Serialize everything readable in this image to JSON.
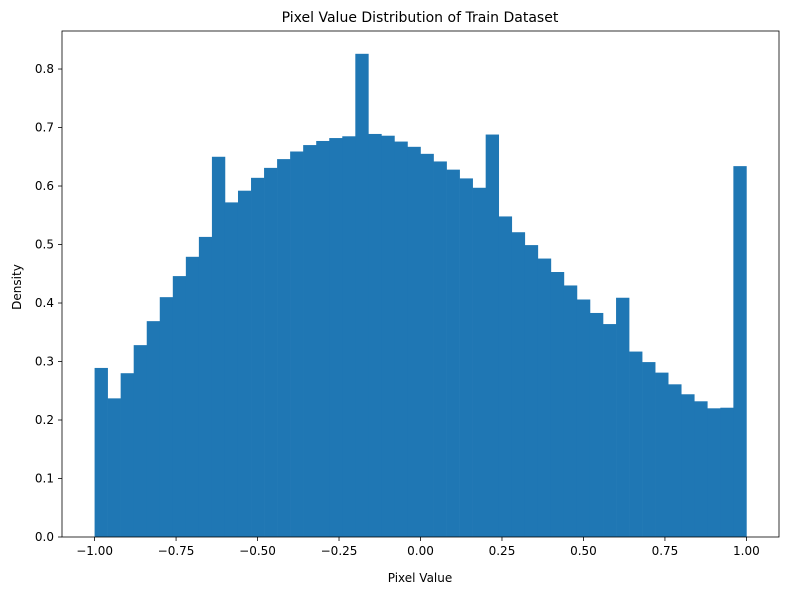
{
  "chart_data": {
    "type": "bar",
    "title": "Pixel Value Distribution of Train Dataset",
    "xlabel": "Pixel Value",
    "ylabel": "Density",
    "xlim": [
      -1.1,
      1.1
    ],
    "ylim": [
      0,
      0.865
    ],
    "bins": {
      "start": -1.0,
      "end": 1.0,
      "count": 50
    },
    "values": [
      0.289,
      0.237,
      0.28,
      0.328,
      0.369,
      0.41,
      0.446,
      0.479,
      0.513,
      0.65,
      0.572,
      0.592,
      0.614,
      0.631,
      0.646,
      0.659,
      0.67,
      0.677,
      0.682,
      0.685,
      0.826,
      0.689,
      0.686,
      0.676,
      0.667,
      0.655,
      0.642,
      0.628,
      0.613,
      0.597,
      0.688,
      0.548,
      0.521,
      0.499,
      0.476,
      0.453,
      0.43,
      0.406,
      0.383,
      0.364,
      0.409,
      0.317,
      0.299,
      0.281,
      0.261,
      0.244,
      0.232,
      0.22,
      0.221,
      0.634
    ],
    "xticks": [
      -1.0,
      -0.75,
      -0.5,
      -0.25,
      0.0,
      0.25,
      0.5,
      0.75,
      1.0
    ],
    "xtick_labels": [
      "−1.00",
      "−0.75",
      "−0.50",
      "−0.25",
      "0.00",
      "0.25",
      "0.50",
      "0.75",
      "1.00"
    ],
    "yticks": [
      0.0,
      0.1,
      0.2,
      0.3,
      0.4,
      0.5,
      0.6,
      0.7,
      0.8
    ],
    "ytick_labels": [
      "0.0",
      "0.1",
      "0.2",
      "0.3",
      "0.4",
      "0.5",
      "0.6",
      "0.7",
      "0.8"
    ],
    "bar_color": "#1f77b4",
    "grid": false,
    "legend": "none"
  }
}
